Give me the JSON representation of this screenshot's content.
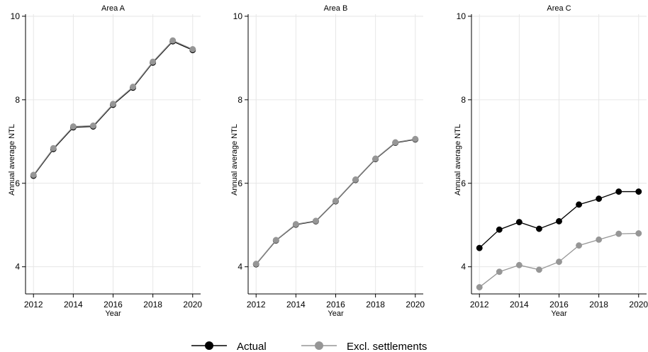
{
  "chart_data": {
    "type": "line",
    "x": [
      2012,
      2013,
      2014,
      2015,
      2016,
      2017,
      2018,
      2019,
      2020
    ],
    "xlabel": "Year",
    "ylabel": "Annual average NTL",
    "xticks": [
      2012,
      2014,
      2016,
      2018,
      2020
    ],
    "yticks": [
      4,
      6,
      8,
      10
    ],
    "ylim": [
      3.35,
      10.05
    ],
    "xlim": [
      2011.6,
      2020.4
    ],
    "grid": true,
    "legend_position": "bottom",
    "colors": {
      "actual": "#000000",
      "excl": "#969696"
    },
    "legend": [
      {
        "key": "actual",
        "label": "Actual"
      },
      {
        "key": "excl",
        "label": "Excl. settlements"
      }
    ],
    "panels": [
      {
        "title": "Area A",
        "series": [
          {
            "name": "Actual",
            "key": "actual",
            "values": [
              6.18,
              6.82,
              7.34,
              7.36,
              7.88,
              8.29,
              8.89,
              9.4,
              9.19
            ]
          },
          {
            "name": "Excl. settlements",
            "key": "excl",
            "values": [
              6.2,
              6.84,
              7.36,
              7.38,
              7.9,
              8.31,
              8.91,
              9.42,
              9.21
            ]
          }
        ]
      },
      {
        "title": "Area B",
        "series": [
          {
            "name": "Actual",
            "key": "actual",
            "values": [
              4.06,
              4.63,
              5.01,
              5.09,
              5.57,
              6.08,
              6.58,
              6.97,
              7.05
            ]
          },
          {
            "name": "Excl. settlements",
            "key": "excl",
            "values": [
              4.07,
              4.64,
              5.02,
              5.1,
              5.58,
              6.09,
              6.59,
              6.98,
              7.06
            ]
          }
        ]
      },
      {
        "title": "Area C",
        "series": [
          {
            "name": "Actual",
            "key": "actual",
            "values": [
              4.45,
              4.89,
              5.07,
              4.91,
              5.09,
              5.49,
              5.63,
              5.8,
              5.8
            ]
          },
          {
            "name": "Excl. settlements",
            "key": "excl",
            "values": [
              3.51,
              3.88,
              4.04,
              3.93,
              4.12,
              4.51,
              4.65,
              4.79,
              4.8
            ]
          }
        ]
      }
    ]
  }
}
